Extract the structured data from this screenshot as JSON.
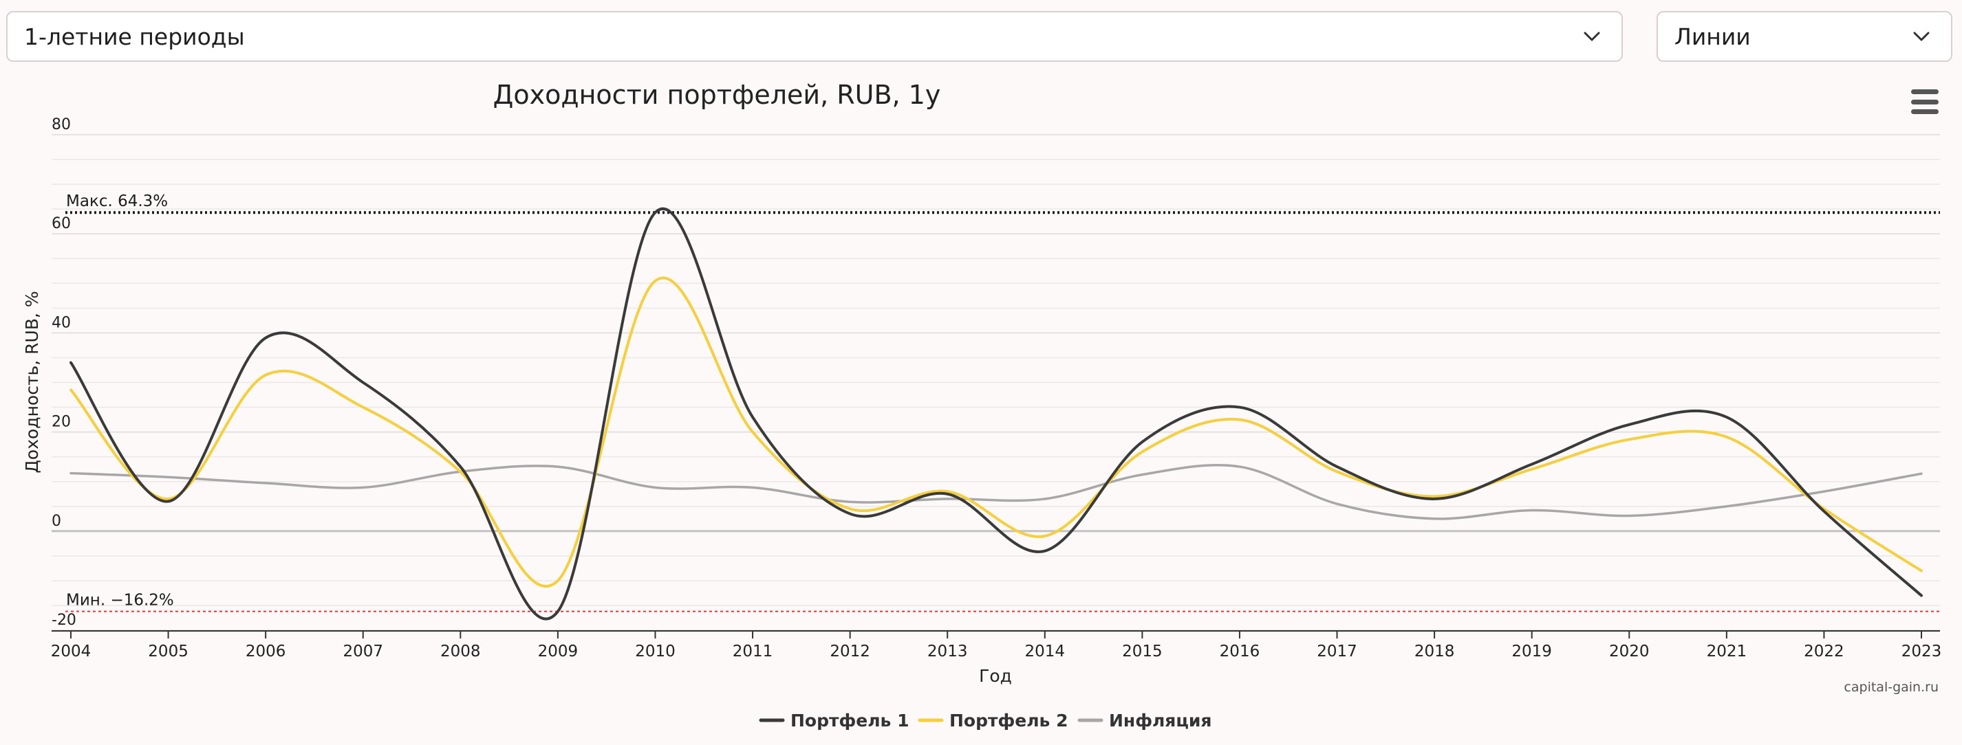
{
  "controls": {
    "period_select": "1-летние периоды",
    "chart_type_select": "Линии"
  },
  "chart_data": {
    "type": "line",
    "title": "Доходности портфелей, RUB, 1y",
    "xlabel": "Год",
    "ylabel": "Доходность, RUB, %",
    "ylim": [
      -20,
      80
    ],
    "y_ticks": [
      "-20",
      "0",
      "20",
      "40",
      "60",
      "80"
    ],
    "categories": [
      "2004",
      "2005",
      "2006",
      "2007",
      "2008",
      "2009",
      "2010",
      "2011",
      "2012",
      "2013",
      "2014",
      "2015",
      "2016",
      "2017",
      "2018",
      "2019",
      "2020",
      "2021",
      "2022",
      "2023"
    ],
    "series": [
      {
        "name": "Портфель 1",
        "color": "#3a3a3a",
        "values": [
          34,
          6,
          39,
          30,
          13,
          -16.2,
          64.3,
          23,
          3.5,
          7.5,
          -4,
          18,
          25,
          13,
          6.5,
          13.5,
          21.5,
          23,
          4,
          -13
        ]
      },
      {
        "name": "Портфель 2",
        "color": "#f5cf3f",
        "values": [
          28.5,
          6.5,
          31.5,
          25,
          12,
          -10,
          50.5,
          20,
          4.5,
          8,
          -1,
          16,
          22.5,
          12,
          7,
          12.5,
          18.5,
          19,
          4.5,
          -8
        ]
      },
      {
        "name": "Инфляция",
        "color": "#a7a7a7",
        "values": [
          11.7,
          10.9,
          9.7,
          8.8,
          12,
          13,
          8.8,
          8.8,
          5.9,
          6.5,
          6.5,
          11.4,
          13,
          5.5,
          2.5,
          4.2,
          3.1,
          5,
          8,
          11.6
        ]
      }
    ],
    "reference_lines": [
      {
        "label": "Макс. 64.3%",
        "value": 64.3,
        "color": "#1c1c1c",
        "style": "dotted"
      },
      {
        "label": "Мин. −16.2%",
        "value": -16.2,
        "color": "#e0333f",
        "style": "dashed"
      }
    ],
    "grid": true,
    "legend_position": "bottom-center",
    "credit": "capital-gain.ru"
  }
}
